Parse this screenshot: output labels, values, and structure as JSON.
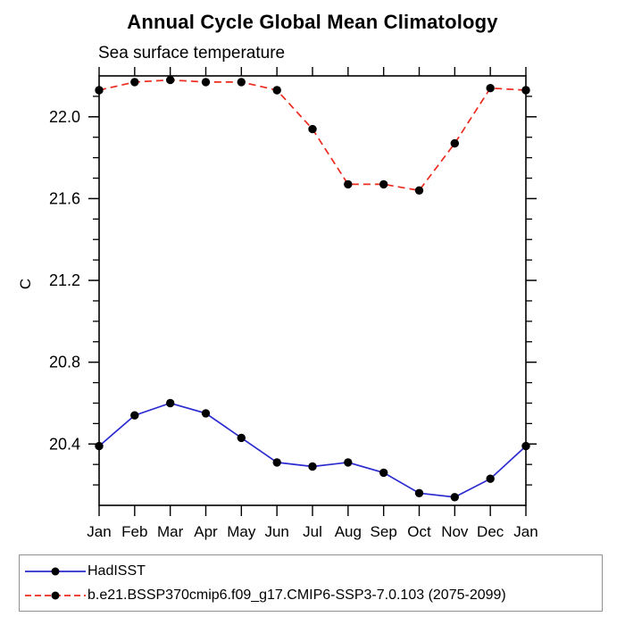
{
  "chart_data": {
    "type": "line",
    "title": "Annual Cycle Global Mean Climatology",
    "subtitle": "Sea surface temperature",
    "xlabel": "",
    "ylabel": "C",
    "categories": [
      "Jan",
      "Feb",
      "Mar",
      "Apr",
      "May",
      "Jun",
      "Jul",
      "Aug",
      "Sep",
      "Oct",
      "Nov",
      "Dec",
      "Jan"
    ],
    "ylim": [
      20.1,
      22.2
    ],
    "ytick_major": [
      20.4,
      20.8,
      21.2,
      21.6,
      22.0
    ],
    "ytick_minor_step": 0.1,
    "grid": false,
    "legend_position": "bottom-left-outside",
    "frame_color": "#000000",
    "marker_color": "#000000",
    "series": [
      {
        "name": "HadISST",
        "color": "#2b2bd0",
        "style": "solid",
        "marker": "circle",
        "values": [
          20.39,
          20.54,
          20.6,
          20.55,
          20.43,
          20.31,
          20.29,
          20.31,
          20.26,
          20.16,
          20.14,
          20.23,
          20.39
        ]
      },
      {
        "name": "b.e21.BSSP370cmip6.f09_g17.CMIP6-SSP3-7.0.103 (2075-2099)",
        "color": "#ec2a1e",
        "style": "dashed",
        "marker": "circle",
        "values": [
          22.13,
          22.17,
          22.18,
          22.17,
          22.17,
          22.13,
          21.94,
          21.67,
          21.67,
          21.64,
          21.87,
          22.14,
          22.13
        ]
      }
    ]
  }
}
